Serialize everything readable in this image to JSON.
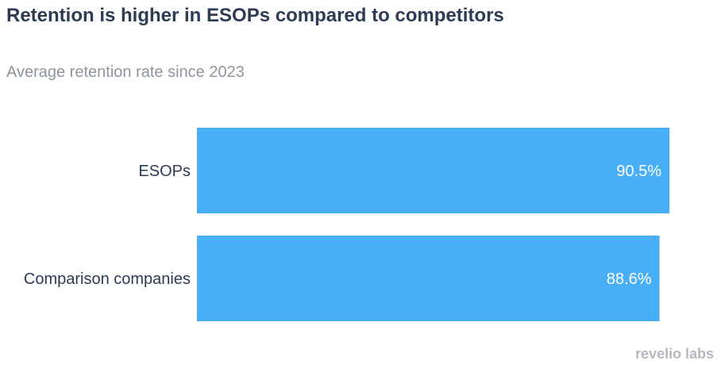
{
  "chart_data": {
    "type": "bar",
    "orientation": "horizontal",
    "title": "Retention is higher in ESOPs compared to competitors",
    "subtitle": "Average retention rate since 2023",
    "categories": [
      "ESOPs",
      "Comparison companies"
    ],
    "values": [
      90.5,
      88.6
    ],
    "value_labels": [
      "90.5%",
      "88.6%"
    ],
    "bar_color": "#48aef5",
    "grid": false
  },
  "branding": {
    "logo_text": "revelio labs"
  }
}
